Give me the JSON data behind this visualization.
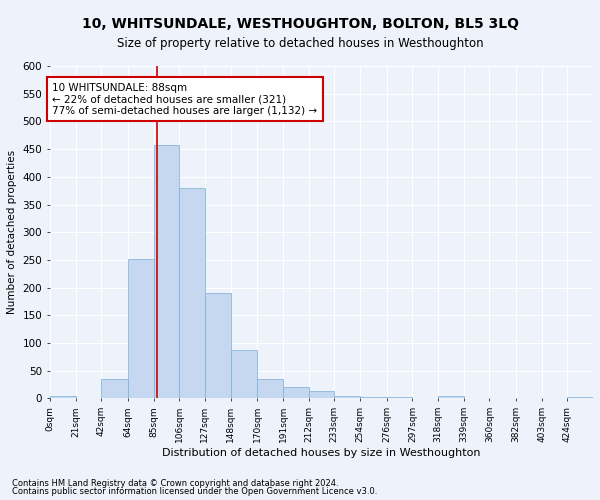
{
  "title": "10, WHITSUNDALE, WESTHOUGHTON, BOLTON, BL5 3LQ",
  "subtitle": "Size of property relative to detached houses in Westhoughton",
  "xlabel": "Distribution of detached houses by size in Westhoughton",
  "ylabel": "Number of detached properties",
  "footnote1": "Contains HM Land Registry data © Crown copyright and database right 2024.",
  "footnote2": "Contains public sector information licensed under the Open Government Licence v3.0.",
  "bar_color": "#c5d8f0",
  "bar_edge_color": "#7aaed6",
  "annotation_box_color": "#cc0000",
  "vline_color": "#cc0000",
  "annotation_title": "10 WHITSUNDALE: 88sqm",
  "annotation_line2": "← 22% of detached houses are smaller (321)",
  "annotation_line3": "77% of semi-detached houses are larger (1,132) →",
  "vline_x": 88,
  "categories": [
    "0sqm",
    "21sqm",
    "42sqm",
    "64sqm",
    "85sqm",
    "106sqm",
    "127sqm",
    "148sqm",
    "170sqm",
    "191sqm",
    "212sqm",
    "233sqm",
    "254sqm",
    "276sqm",
    "297sqm",
    "318sqm",
    "339sqm",
    "360sqm",
    "382sqm",
    "403sqm",
    "424sqm"
  ],
  "bin_edges": [
    0,
    21,
    42,
    64,
    85,
    106,
    127,
    148,
    170,
    191,
    212,
    233,
    254,
    276,
    297,
    318,
    339,
    360,
    382,
    403,
    424,
    445
  ],
  "counts": [
    4,
    0,
    35,
    252,
    457,
    380,
    190,
    88,
    35,
    20,
    14,
    5,
    3,
    2,
    0,
    5,
    0,
    0,
    0,
    0,
    3
  ],
  "ylim": [
    0,
    600
  ],
  "yticks": [
    0,
    50,
    100,
    150,
    200,
    250,
    300,
    350,
    400,
    450,
    500,
    550,
    600
  ],
  "background_color": "#eef2fa",
  "grid_color": "#ffffff"
}
